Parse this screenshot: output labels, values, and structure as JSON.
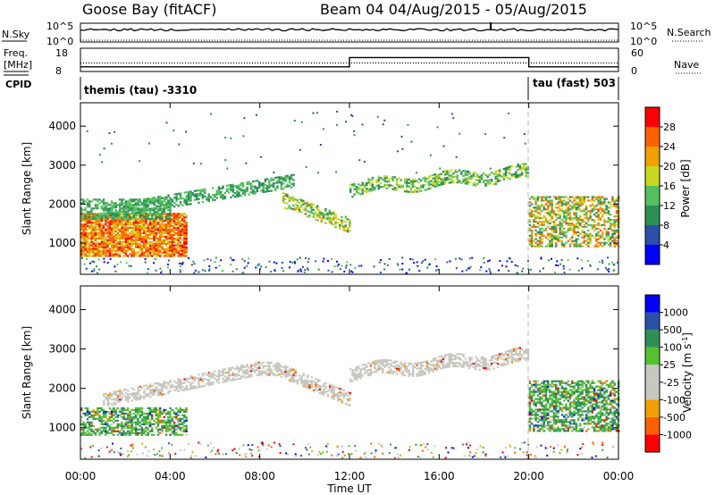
{
  "header": {
    "station": "Goose Bay (fitACF)",
    "beam_info": "Beam 04 04/Aug/2015 - 05/Aug/2015"
  },
  "strip_labels": {
    "nsky": "N.Sky",
    "nsearch": "N.Search",
    "freq_top": "Freq.",
    "freq_unit": "[MHz]",
    "nave": "Nave",
    "cpid": "CPID",
    "nsky_ticks": [
      "10^5",
      "10^0"
    ],
    "nsearch_ticks": [
      "10^5",
      "10^0"
    ],
    "freq_ticks": [
      "18",
      "8"
    ],
    "nave_ticks": [
      "60",
      "0"
    ]
  },
  "cpid": {
    "segments": [
      {
        "label": "themis (tau) -3310",
        "start_hour": 0
      },
      {
        "label": "tau (fast) 503",
        "start_hour": 20
      }
    ]
  },
  "colors": {
    "power_scale": [
      "#0000ff",
      "#2a50a8",
      "#2e8f56",
      "#55c060",
      "#c8d820",
      "#f0a000",
      "#ff6000",
      "#ff0000"
    ],
    "velocity_scale": [
      "#ff0000",
      "#ff6000",
      "#f0a000",
      "#c8c8c0",
      "#c8c8c0",
      "#55c030",
      "#2e8f56",
      "#2a50a8",
      "#0000ff"
    ],
    "ground_scatter": "#c8c8c0"
  },
  "chart_data": [
    {
      "type": "heatmap",
      "name": "power",
      "xlabel": "",
      "ylabel": "Slant Range [km]",
      "xlim_hours": [
        0,
        24
      ],
      "ylim": [
        200,
        4600
      ],
      "yticks": [
        1000,
        2000,
        3000,
        4000
      ],
      "colorbar": {
        "label": "Power [dB]",
        "ticks": [
          "4",
          "8",
          "12",
          "16",
          "20",
          "24",
          "28"
        ],
        "range": [
          0,
          32
        ]
      },
      "features": [
        {
          "t": [
            0.0,
            4.7
          ],
          "r": [
            650,
            1750
          ],
          "value_db": "18-30",
          "note": "strong near-range echoes"
        },
        {
          "t": [
            0.0,
            4.0
          ],
          "r": [
            1600,
            2100
          ],
          "value_db": "10-14"
        },
        {
          "t": [
            1.0,
            9.5
          ],
          "r": [
            1700,
            2800
          ],
          "value_db": "8-16",
          "note": "rising band"
        },
        {
          "t": [
            9.0,
            12.0
          ],
          "r": [
            1300,
            2200
          ],
          "value_db": "10-22",
          "note": "descending band"
        },
        {
          "t": [
            12.0,
            20.0
          ],
          "r": [
            2100,
            3300
          ],
          "value_db": "8-20"
        },
        {
          "t": [
            20.0,
            24.0
          ],
          "r": [
            900,
            2200
          ],
          "value_db": "8-28"
        }
      ]
    },
    {
      "type": "heatmap",
      "name": "velocity",
      "xlabel": "Time UT",
      "ylabel": "Slant Range [km]",
      "xlim_hours": [
        0,
        24
      ],
      "ylim": [
        200,
        4600
      ],
      "yticks": [
        1000,
        2000,
        3000,
        4000
      ],
      "xticks": [
        "00:00",
        "04:00",
        "08:00",
        "12:00",
        "16:00",
        "20:00",
        "00:00"
      ],
      "colorbar": {
        "label": "Velocity [m s-1]",
        "ticks": [
          "-1000",
          "-500",
          "-100",
          "-25",
          "25",
          "100",
          "500",
          "1000"
        ],
        "range": [
          -1500,
          1500
        ]
      },
      "features": [
        {
          "t": [
            0.0,
            4.7
          ],
          "r": [
            800,
            1500
          ],
          "value": "100 to 500",
          "note": "ionospheric, green"
        },
        {
          "t": [
            1.0,
            12.0
          ],
          "r": [
            1300,
            2800
          ],
          "value": "-25 to 25",
          "note": "ground scatter, grey"
        },
        {
          "t": [
            12.0,
            20.0
          ],
          "r": [
            2100,
            3300
          ],
          "value": "-25 to 25",
          "note": "ground scatter, grey"
        },
        {
          "t": [
            20.0,
            24.0
          ],
          "r": [
            900,
            2200
          ],
          "value": "-100 to 100"
        }
      ]
    },
    {
      "type": "line",
      "name": "nsky_nsearch",
      "note": "N.Sky solid line near top of log scale with a single spike near 18:00 UT; N.Search dotted"
    },
    {
      "type": "line",
      "name": "freq_nave",
      "freq_mhz": [
        {
          "t": [
            0,
            12
          ],
          "value": 10
        },
        {
          "t": [
            12,
            20
          ],
          "value": 14
        },
        {
          "t": [
            20,
            24
          ],
          "value": 10
        }
      ],
      "nave": [
        {
          "t": [
            0,
            24
          ],
          "value": 22
        }
      ]
    }
  ]
}
